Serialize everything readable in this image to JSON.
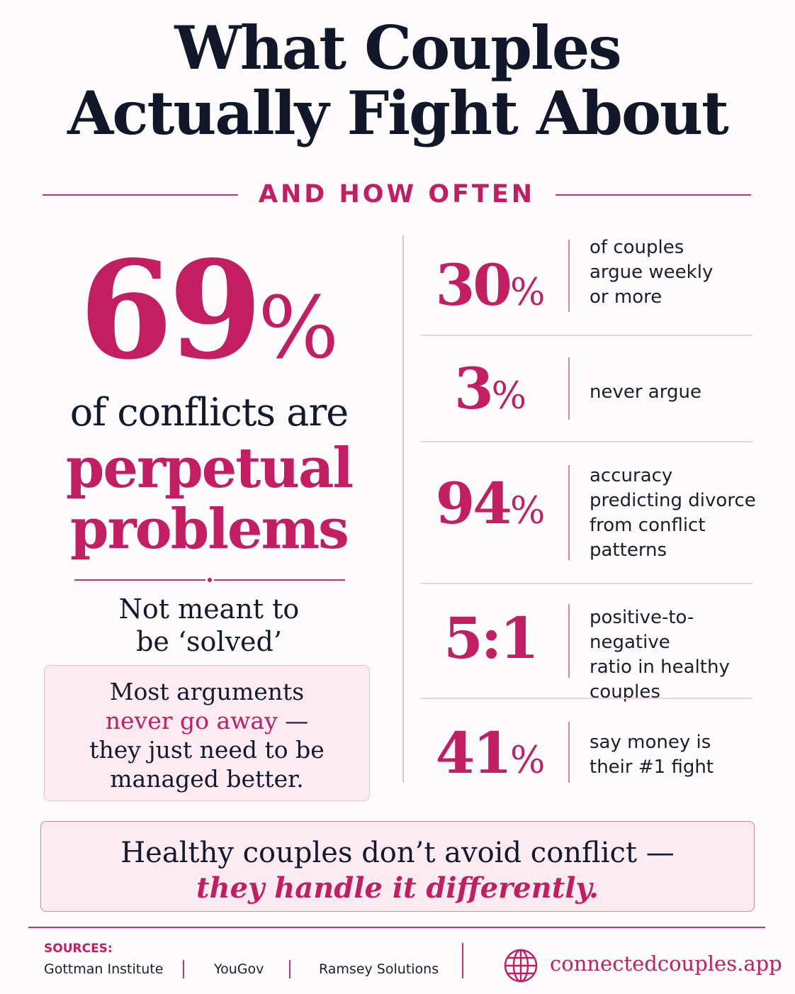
{
  "header": {
    "title_line1": "What Couples",
    "title_line2": "Actually Fight About",
    "subtitle": "AND HOW OFTEN"
  },
  "left": {
    "big_number": "69",
    "big_percent": "%",
    "line1": "of conflicts are",
    "line2": "perpetual",
    "line3": "problems",
    "not_meant_1": "Not meant to",
    "not_meant_2": "be ‘solved’",
    "box_line1": "Most arguments",
    "box_highlight": "never go away",
    "box_dash": " —",
    "box_line3": "they just need to be",
    "box_line4": "managed better."
  },
  "stats": [
    {
      "number": "30",
      "suffix": "%",
      "desc": [
        "of couples",
        "argue weekly",
        "or more"
      ]
    },
    {
      "number": "3",
      "suffix": "%",
      "desc": [
        "never argue"
      ]
    },
    {
      "number": "94",
      "suffix": "%",
      "desc": [
        "accuracy",
        "predicting divorce",
        "from conflict",
        "patterns"
      ]
    },
    {
      "number": "5:1",
      "suffix": "",
      "desc": [
        "positive-to-negative",
        "ratio in healthy",
        "couples"
      ]
    },
    {
      "number": "41",
      "suffix": "%",
      "desc": [
        "say money is",
        "their #1 fight"
      ]
    }
  ],
  "banner": {
    "line1": "Healthy couples don’t avoid conflict —",
    "line2": "they handle it differently."
  },
  "footer": {
    "sources_label": "SOURCES:",
    "sources": [
      "Gottman Institute",
      "YouGov",
      "Ramsey Solutions"
    ],
    "website": "connectedcouples.app",
    "icon": "globe-icon"
  },
  "colors": {
    "accent": "#c41e62",
    "text": "#141a2e",
    "panel": "#fcecf1"
  }
}
